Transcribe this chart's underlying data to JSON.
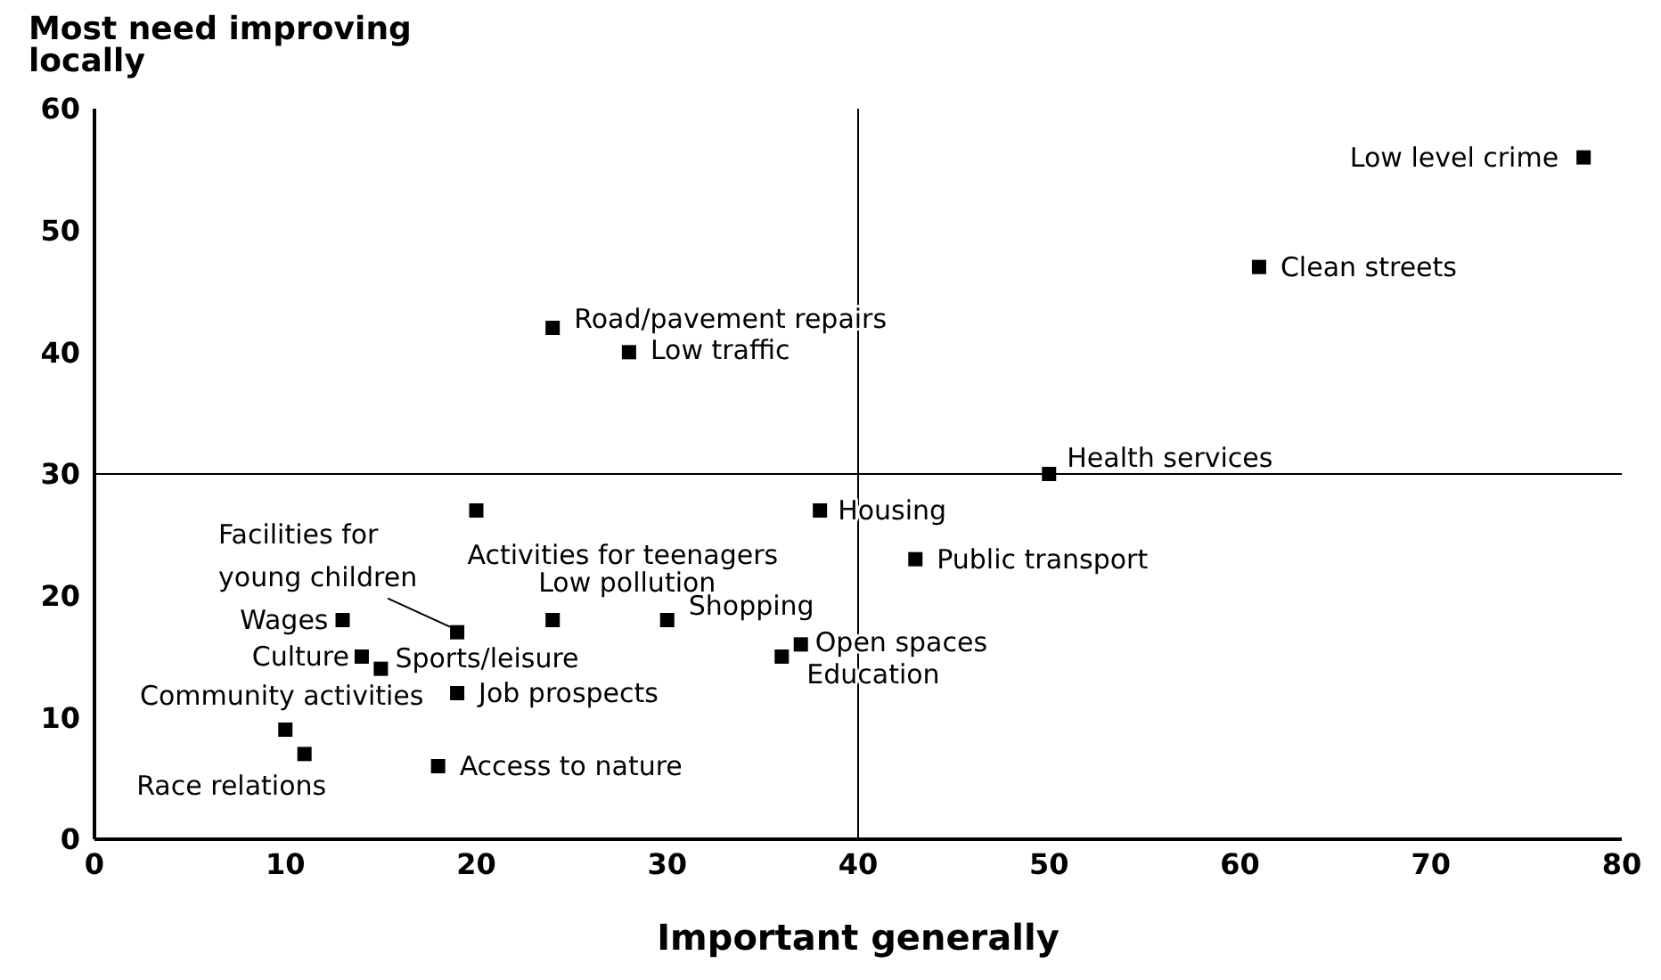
{
  "chart_data": {
    "type": "scatter",
    "xlabel": "Important generally",
    "ylabel": "Most need improving locally",
    "x": [
      78,
      61,
      24,
      28,
      50,
      20,
      38,
      43,
      19,
      24,
      30,
      13,
      37,
      36,
      14,
      15,
      19,
      10,
      11,
      18
    ],
    "series": [
      {
        "color": "#000000",
        "values": [
          56,
          47,
          42,
          40,
          30,
          27,
          27,
          23,
          17,
          18,
          18,
          18,
          16,
          15,
          15,
          14,
          12,
          9,
          7,
          6
        ]
      }
    ],
    "xlim": [
      0,
      80
    ],
    "xticks": [
      0,
      10,
      20,
      30,
      40,
      50,
      60,
      70,
      80
    ],
    "ylim": [
      0,
      60
    ],
    "yticks": [
      0,
      10,
      20,
      30,
      40,
      50,
      60
    ],
    "ref_lines": [
      {
        "axis": "x",
        "value": 40,
        "color": "#000000"
      },
      {
        "axis": "y",
        "value": 30,
        "color": "#000000"
      }
    ],
    "grid": false,
    "legend": false,
    "marker": "square",
    "annotations": [
      {
        "text": "Low level crime",
        "x": 78,
        "y": 56
      },
      {
        "text": "Clean streets",
        "x": 61,
        "y": 47
      },
      {
        "text": "Road/pavement repairs",
        "x": 24,
        "y": 42
      },
      {
        "text": "Low traffic",
        "x": 28,
        "y": 40
      },
      {
        "text": "Health services",
        "x": 50,
        "y": 30
      },
      {
        "text": "Activities for teenagers",
        "x": 20,
        "y": 27
      },
      {
        "text": "Housing",
        "x": 38,
        "y": 27
      },
      {
        "text": "Public transport",
        "x": 43,
        "y": 23
      },
      {
        "text": "Facilities for young children",
        "x": 19,
        "y": 17
      },
      {
        "text": "Low pollution",
        "x": 24,
        "y": 18
      },
      {
        "text": "Shopping",
        "x": 30,
        "y": 18
      },
      {
        "text": "Wages",
        "x": 13,
        "y": 18
      },
      {
        "text": "Open spaces",
        "x": 37,
        "y": 16
      },
      {
        "text": "Education",
        "x": 36,
        "y": 15
      },
      {
        "text": "Culture",
        "x": 14,
        "y": 15
      },
      {
        "text": "Sports/leisure",
        "x": 15,
        "y": 14
      },
      {
        "text": "Job prospects",
        "x": 19,
        "y": 12
      },
      {
        "text": "Community activities",
        "x": 10,
        "y": 9
      },
      {
        "text": "Race relations",
        "x": 11,
        "y": 7
      },
      {
        "text": "Access to nature",
        "x": 18,
        "y": 6
      }
    ]
  }
}
